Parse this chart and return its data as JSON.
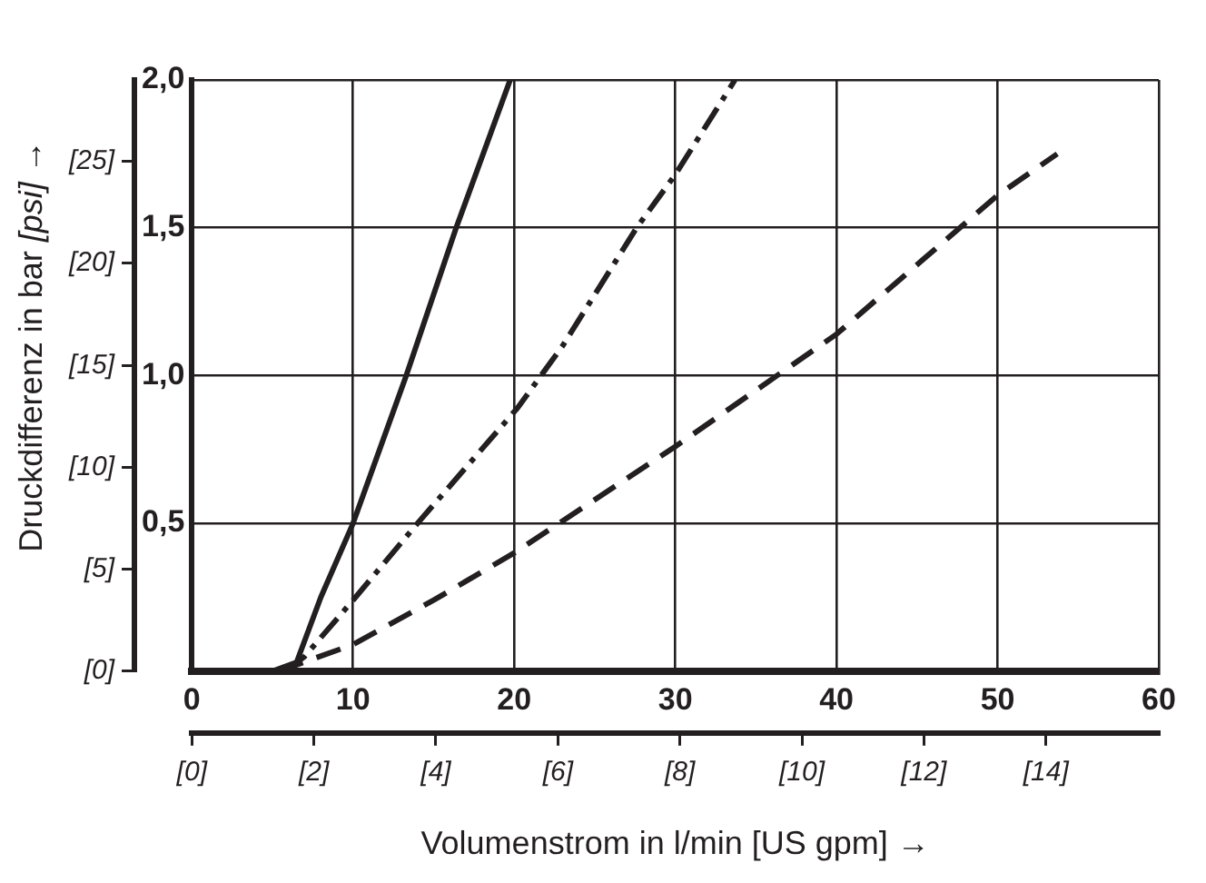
{
  "chart_data": {
    "type": "line",
    "xlabel": "Volumenstrom in l/min [US gpm] →",
    "ylabel": "Druckdifferenz in bar [psi] →",
    "xlim": [
      0,
      60
    ],
    "xticks": [
      0,
      10,
      20,
      30,
      40,
      50,
      60
    ],
    "y2lim": [
      0,
      2.0
    ],
    "y2ticks": [
      {
        "value": 0,
        "label": null
      },
      {
        "value": 0.5,
        "label": "0,5"
      },
      {
        "value": 1.0,
        "label": "1,0"
      },
      {
        "value": 1.5,
        "label": "1,5"
      },
      {
        "value": 2.0,
        "label": "2,0"
      }
    ],
    "x2lim": [
      0,
      15.85
    ],
    "x2ticks": [
      {
        "value": 0,
        "label": "[0]"
      },
      {
        "value": 2,
        "label": "[2]"
      },
      {
        "value": 4,
        "label": "[4]"
      },
      {
        "value": 6,
        "label": "[6]"
      },
      {
        "value": 8,
        "label": "[8]"
      },
      {
        "value": 10,
        "label": "[10]"
      },
      {
        "value": 12,
        "label": "[12]"
      },
      {
        "value": 14,
        "label": "[14]"
      }
    ],
    "ylim": [
      0,
      29.0
    ],
    "yticks": [
      {
        "value": 0,
        "label": "[0]"
      },
      {
        "value": 5,
        "label": "[5]"
      },
      {
        "value": 10,
        "label": "[10]"
      },
      {
        "value": 15,
        "label": "[15]"
      },
      {
        "value": 20,
        "label": "[20]"
      },
      {
        "value": 25,
        "label": "[25]"
      }
    ],
    "grid": true,
    "legend": false,
    "marker": "none",
    "series": [
      {
        "color": "#231f20",
        "line_style": "solid",
        "axis": "y2",
        "x": [
          5,
          6.5,
          8,
          10,
          13.3,
          16.4,
          19.75
        ],
        "values": [
          0,
          0.03,
          0.25,
          0.5,
          1.0,
          1.5,
          2.0
        ]
      },
      {
        "color": "#231f20",
        "line_style": "dashdot",
        "axis": "y2",
        "x": [
          5.8,
          7,
          10,
          14,
          20.2,
          23,
          27.6,
          30,
          33.7
        ],
        "values": [
          0,
          0.05,
          0.24,
          0.5,
          0.89,
          1.1,
          1.5,
          1.68,
          2.0
        ]
      },
      {
        "color": "#231f20",
        "line_style": "dashed",
        "axis": "y2",
        "x": [
          5.4,
          10,
          15,
          20,
          30,
          40,
          50,
          53.7
        ],
        "values": [
          0,
          0.09,
          0.24,
          0.4,
          0.76,
          1.14,
          1.61,
          1.75
        ]
      }
    ]
  }
}
